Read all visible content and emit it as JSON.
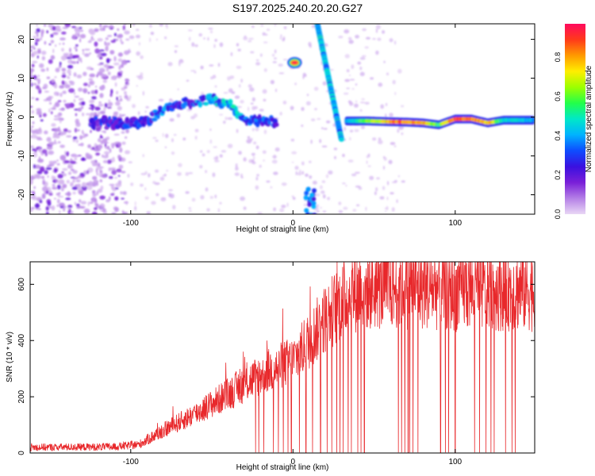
{
  "title": "S197.2025.240.20.20.G27",
  "chart_data": [
    {
      "type": "heatmap",
      "xlabel": "Height of straight line (km)",
      "ylabel": "Frequency (Hz)",
      "xlim": [
        -162,
        149
      ],
      "ylim": [
        -25,
        24
      ],
      "xticks": [
        -100,
        0,
        100
      ],
      "yticks": [
        -20,
        -10,
        0,
        10,
        20
      ],
      "colorbar": {
        "label": "Normalized spectral amplitude",
        "range": [
          0,
          0.97
        ],
        "ticks": [
          0.0,
          0.2,
          0.4,
          0.6,
          0.8
        ],
        "colors": [
          "#e9d7f5",
          "#b47fe6",
          "#7a1fd8",
          "#3a10e0",
          "#0e4cff",
          "#00b2ff",
          "#00e8c8",
          "#22ff4a",
          "#9cff00",
          "#ffee00",
          "#ff9a00",
          "#ff3a1a",
          "#ff0a5e"
        ]
      },
      "ridge": {
        "x": [
          -125,
          -110,
          -100,
          -90,
          -80,
          -70,
          -60,
          -50,
          -40,
          -30,
          -20,
          -10
        ],
        "freq": [
          -1.5,
          -1.5,
          -1.5,
          -1.0,
          2.0,
          3.5,
          4.0,
          4.5,
          3.5,
          -0.5,
          -1.0,
          -1.5
        ],
        "amp": [
          0.25,
          0.28,
          0.3,
          0.32,
          0.35,
          0.3,
          0.35,
          0.4,
          0.45,
          0.4,
          0.35,
          0.3
        ]
      },
      "cw_line": {
        "x": [
          33,
          45,
          60,
          70,
          80,
          90,
          100,
          110,
          120,
          130,
          140,
          148
        ],
        "freq": [
          -1.0,
          -1.0,
          -1.2,
          -1.3,
          -1.5,
          -2.0,
          -0.5,
          -0.5,
          -1.5,
          -0.8,
          -0.8,
          -0.8
        ],
        "amp": [
          0.45,
          0.65,
          0.85,
          0.9,
          0.85,
          0.6,
          0.95,
          0.9,
          0.85,
          0.5,
          0.5,
          0.45
        ]
      },
      "diagonal_streak": {
        "x_start": 15,
        "freq_start": 24,
        "x_end": 30,
        "freq_end": -6,
        "amp": 0.4
      },
      "spot": {
        "x": 1,
        "freq": 14,
        "amp": 0.95
      },
      "bottom_blob": {
        "x": 11,
        "freq": -22,
        "amp": 0.35
      }
    },
    {
      "type": "line",
      "xlabel": "Height of straight line (km)",
      "ylabel": "SNR (10 * v/v)",
      "xlim": [
        -162,
        149
      ],
      "ylim": [
        0,
        680
      ],
      "xticks": [
        -100,
        0,
        100
      ],
      "yticks": [
        0,
        200,
        400,
        600
      ],
      "color": "#e8282b",
      "trend": {
        "x": [
          -162,
          -110,
          -95,
          -80,
          -60,
          -40,
          -20,
          0,
          10,
          20,
          30,
          40,
          60,
          80,
          100,
          120,
          149
        ],
        "snr": [
          20,
          22,
          30,
          80,
          140,
          210,
          280,
          330,
          400,
          480,
          540,
          580,
          590,
          590,
          580,
          585,
          580
        ]
      },
      "dropouts_x": [
        -23,
        -21,
        -18,
        -12,
        -9,
        -6,
        -3,
        -1,
        4,
        8,
        12,
        17,
        21,
        24,
        27,
        29,
        31,
        34,
        36,
        40,
        42,
        44,
        65,
        67,
        69,
        71,
        72,
        74,
        77,
        91,
        94,
        96,
        100,
        112,
        115,
        119,
        122,
        124,
        131,
        135,
        137
      ]
    }
  ]
}
